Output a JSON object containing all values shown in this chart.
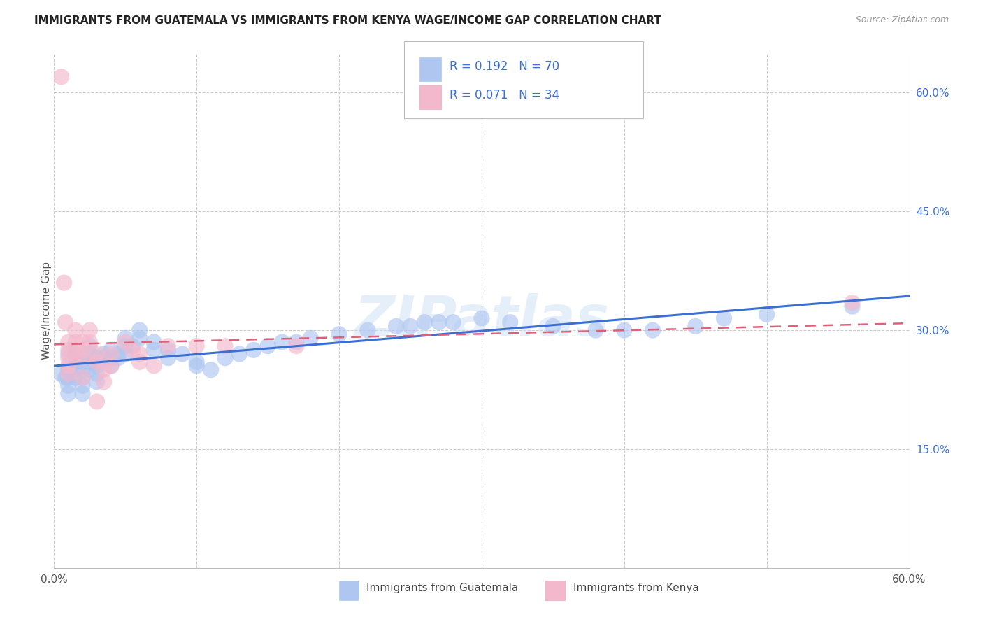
{
  "title": "IMMIGRANTS FROM GUATEMALA VS IMMIGRANTS FROM KENYA WAGE/INCOME GAP CORRELATION CHART",
  "source": "Source: ZipAtlas.com",
  "ylabel": "Wage/Income Gap",
  "ytick_labels": [
    "15.0%",
    "30.0%",
    "45.0%",
    "60.0%"
  ],
  "ytick_values": [
    0.15,
    0.3,
    0.45,
    0.6
  ],
  "xlim": [
    0.0,
    0.6
  ],
  "ylim": [
    0.0,
    0.65
  ],
  "color_blue": "#aec6f0",
  "color_pink": "#f4b8cc",
  "line_blue": "#3b6fd4",
  "line_pink": "#e0607a",
  "watermark": "ZIPatlas",
  "guatemala_x": [
    0.005,
    0.008,
    0.01,
    0.01,
    0.01,
    0.01,
    0.01,
    0.015,
    0.015,
    0.015,
    0.015,
    0.02,
    0.02,
    0.02,
    0.02,
    0.02,
    0.025,
    0.025,
    0.025,
    0.025,
    0.03,
    0.03,
    0.03,
    0.03,
    0.035,
    0.035,
    0.04,
    0.04,
    0.04,
    0.045,
    0.045,
    0.05,
    0.05,
    0.05,
    0.055,
    0.06,
    0.06,
    0.07,
    0.07,
    0.08,
    0.08,
    0.09,
    0.1,
    0.1,
    0.11,
    0.12,
    0.13,
    0.14,
    0.15,
    0.16,
    0.17,
    0.18,
    0.2,
    0.22,
    0.24,
    0.25,
    0.26,
    0.27,
    0.28,
    0.3,
    0.32,
    0.35,
    0.38,
    0.4,
    0.42,
    0.45,
    0.47,
    0.5,
    0.56
  ],
  "guatemala_y": [
    0.245,
    0.24,
    0.27,
    0.25,
    0.24,
    0.23,
    0.22,
    0.27,
    0.26,
    0.25,
    0.24,
    0.26,
    0.25,
    0.24,
    0.23,
    0.22,
    0.28,
    0.27,
    0.26,
    0.25,
    0.265,
    0.255,
    0.245,
    0.235,
    0.27,
    0.265,
    0.275,
    0.265,
    0.255,
    0.27,
    0.265,
    0.29,
    0.28,
    0.27,
    0.28,
    0.3,
    0.29,
    0.285,
    0.275,
    0.275,
    0.265,
    0.27,
    0.26,
    0.255,
    0.25,
    0.265,
    0.27,
    0.275,
    0.28,
    0.285,
    0.285,
    0.29,
    0.295,
    0.3,
    0.305,
    0.305,
    0.31,
    0.31,
    0.31,
    0.315,
    0.31,
    0.305,
    0.3,
    0.3,
    0.3,
    0.305,
    0.315,
    0.32,
    0.33
  ],
  "kenya_x": [
    0.005,
    0.007,
    0.008,
    0.01,
    0.01,
    0.01,
    0.01,
    0.01,
    0.015,
    0.015,
    0.015,
    0.02,
    0.02,
    0.02,
    0.02,
    0.025,
    0.025,
    0.03,
    0.03,
    0.03,
    0.035,
    0.035,
    0.04,
    0.04,
    0.05,
    0.055,
    0.06,
    0.06,
    0.07,
    0.08,
    0.1,
    0.12,
    0.17,
    0.56
  ],
  "kenya_y": [
    0.62,
    0.36,
    0.31,
    0.285,
    0.275,
    0.265,
    0.255,
    0.245,
    0.3,
    0.285,
    0.27,
    0.285,
    0.275,
    0.265,
    0.24,
    0.3,
    0.285,
    0.27,
    0.26,
    0.21,
    0.25,
    0.235,
    0.27,
    0.255,
    0.285,
    0.275,
    0.27,
    0.26,
    0.255,
    0.28,
    0.28,
    0.28,
    0.28,
    0.335
  ]
}
